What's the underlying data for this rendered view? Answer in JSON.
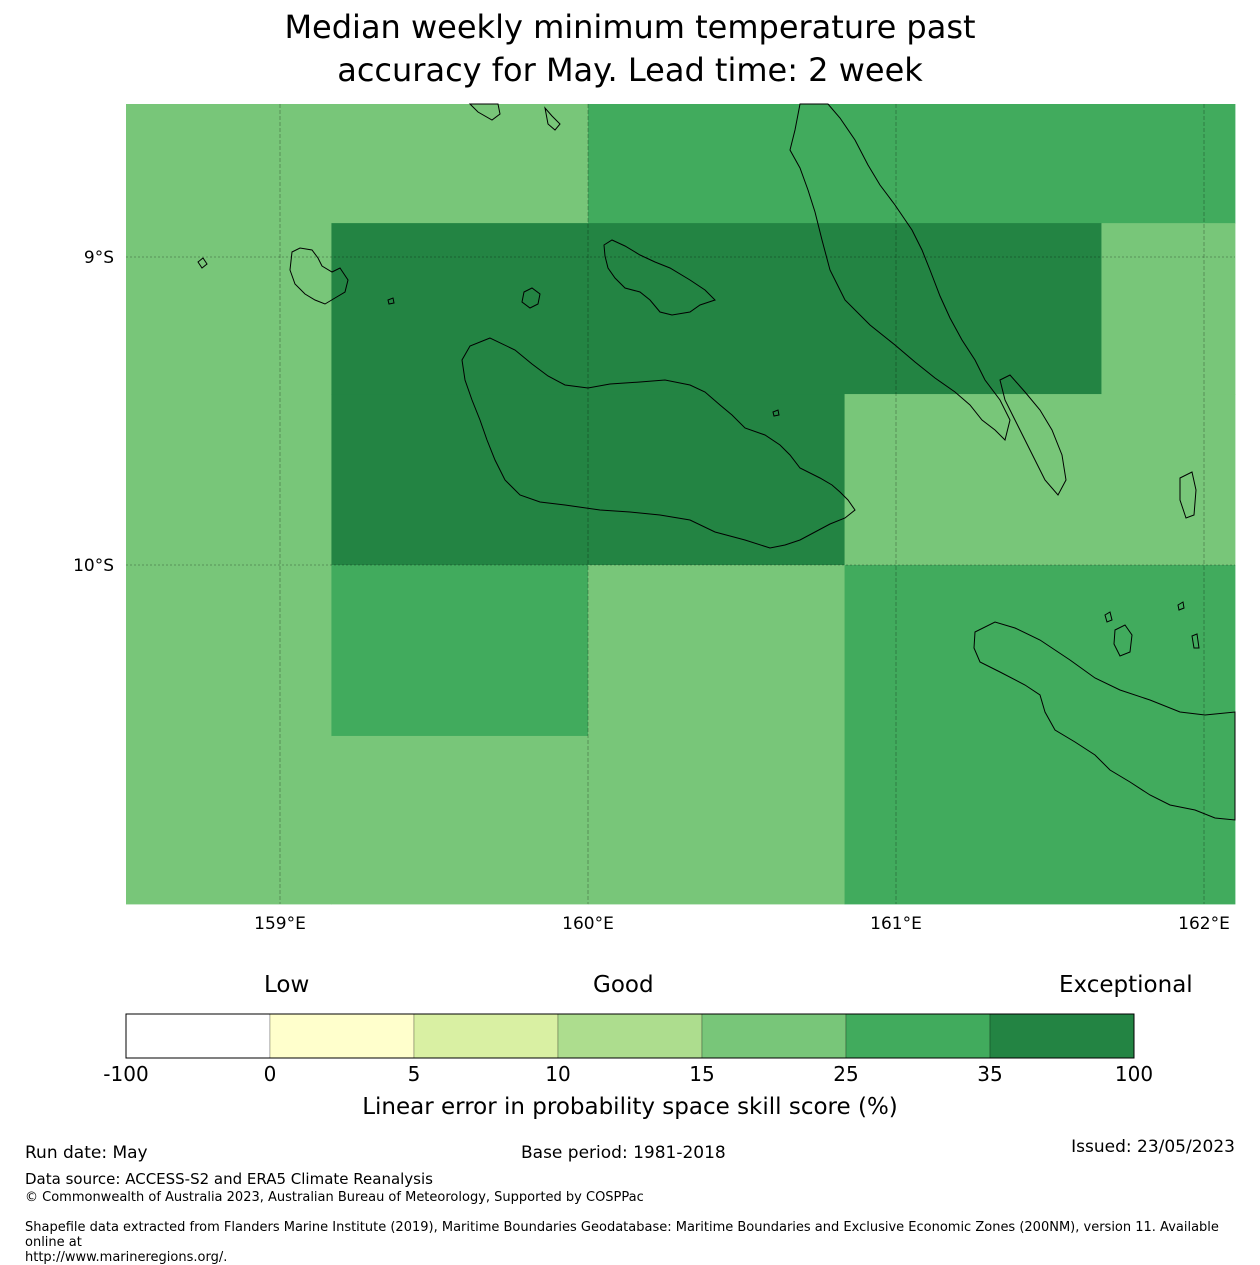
{
  "title": {
    "line1": "Median weekly minimum temperature past",
    "line2": "accuracy for May. Lead time: 2 week"
  },
  "map": {
    "lon_labels": [
      "159°E",
      "160°E",
      "161°E",
      "162°E"
    ],
    "lat_labels": [
      "9°S",
      "10°S"
    ],
    "lon_range": [
      158.5,
      162.1
    ],
    "lat_range": [
      -8.5,
      -11.1
    ]
  },
  "grid_cells": [
    {
      "lon": [
        158.5,
        159.167
      ],
      "lat": [
        -8.5,
        -11.1
      ],
      "category": "15-25"
    },
    {
      "lon": [
        159.167,
        160.0
      ],
      "lat": [
        -8.5,
        -8.89
      ],
      "category": "15-25"
    },
    {
      "lon": [
        160.0,
        162.1
      ],
      "lat": [
        -8.5,
        -8.89
      ],
      "category": "25-35"
    },
    {
      "lon": [
        159.167,
        161.667
      ],
      "lat": [
        -8.89,
        -9.445
      ],
      "category": "35-100"
    },
    {
      "lon": [
        161.667,
        162.1
      ],
      "lat": [
        -8.89,
        -9.445
      ],
      "category": "15-25"
    },
    {
      "lon": [
        159.167,
        160.833
      ],
      "lat": [
        -9.445,
        -10.0
      ],
      "category": "35-100"
    },
    {
      "lon": [
        160.833,
        162.1
      ],
      "lat": [
        -9.445,
        -10.0
      ],
      "category": "15-25"
    },
    {
      "lon": [
        159.167,
        160.0
      ],
      "lat": [
        -10.0,
        -10.555
      ],
      "category": "25-35"
    },
    {
      "lon": [
        159.167,
        160.0
      ],
      "lat": [
        -10.555,
        -11.1
      ],
      "category": "15-25"
    },
    {
      "lon": [
        160.0,
        160.833
      ],
      "lat": [
        -10.0,
        -11.1
      ],
      "category": "15-25"
    },
    {
      "lon": [
        160.833,
        162.1
      ],
      "lat": [
        -10.0,
        -11.1
      ],
      "category": "25-35"
    }
  ],
  "colorbar": {
    "headings": {
      "low": "Low",
      "good": "Good",
      "exceptional": "Exceptional"
    },
    "ticks": [
      "-100",
      "0",
      "5",
      "10",
      "15",
      "25",
      "35",
      "100"
    ],
    "colors": [
      "#ffffff",
      "#ffffcc",
      "#d9f0a3",
      "#addd8e",
      "#78c679",
      "#41ab5d",
      "#238443"
    ],
    "label": "Linear error in probability space skill score (%)"
  },
  "footer": {
    "run_date": "Run date: May",
    "base_period": "Base period: 1981-2018",
    "issued": "Issued: 23/05/2023",
    "data_source": "Data source: ACCESS-S2 and ERA5 Climate Reanalysis",
    "copyright": "© Commonwealth of Australia 2023, Australian Bureau of Meteorology, Supported by COSPPac",
    "shapefile_line1": "Shapefile data extracted from Flanders Marine Institute (2019), Maritime Boundaries Geodatabase: Maritime Boundaries and Exclusive Economic Zones (200NM), version 11. Available online at",
    "shapefile_line2": "http://www.marineregions.org/."
  }
}
